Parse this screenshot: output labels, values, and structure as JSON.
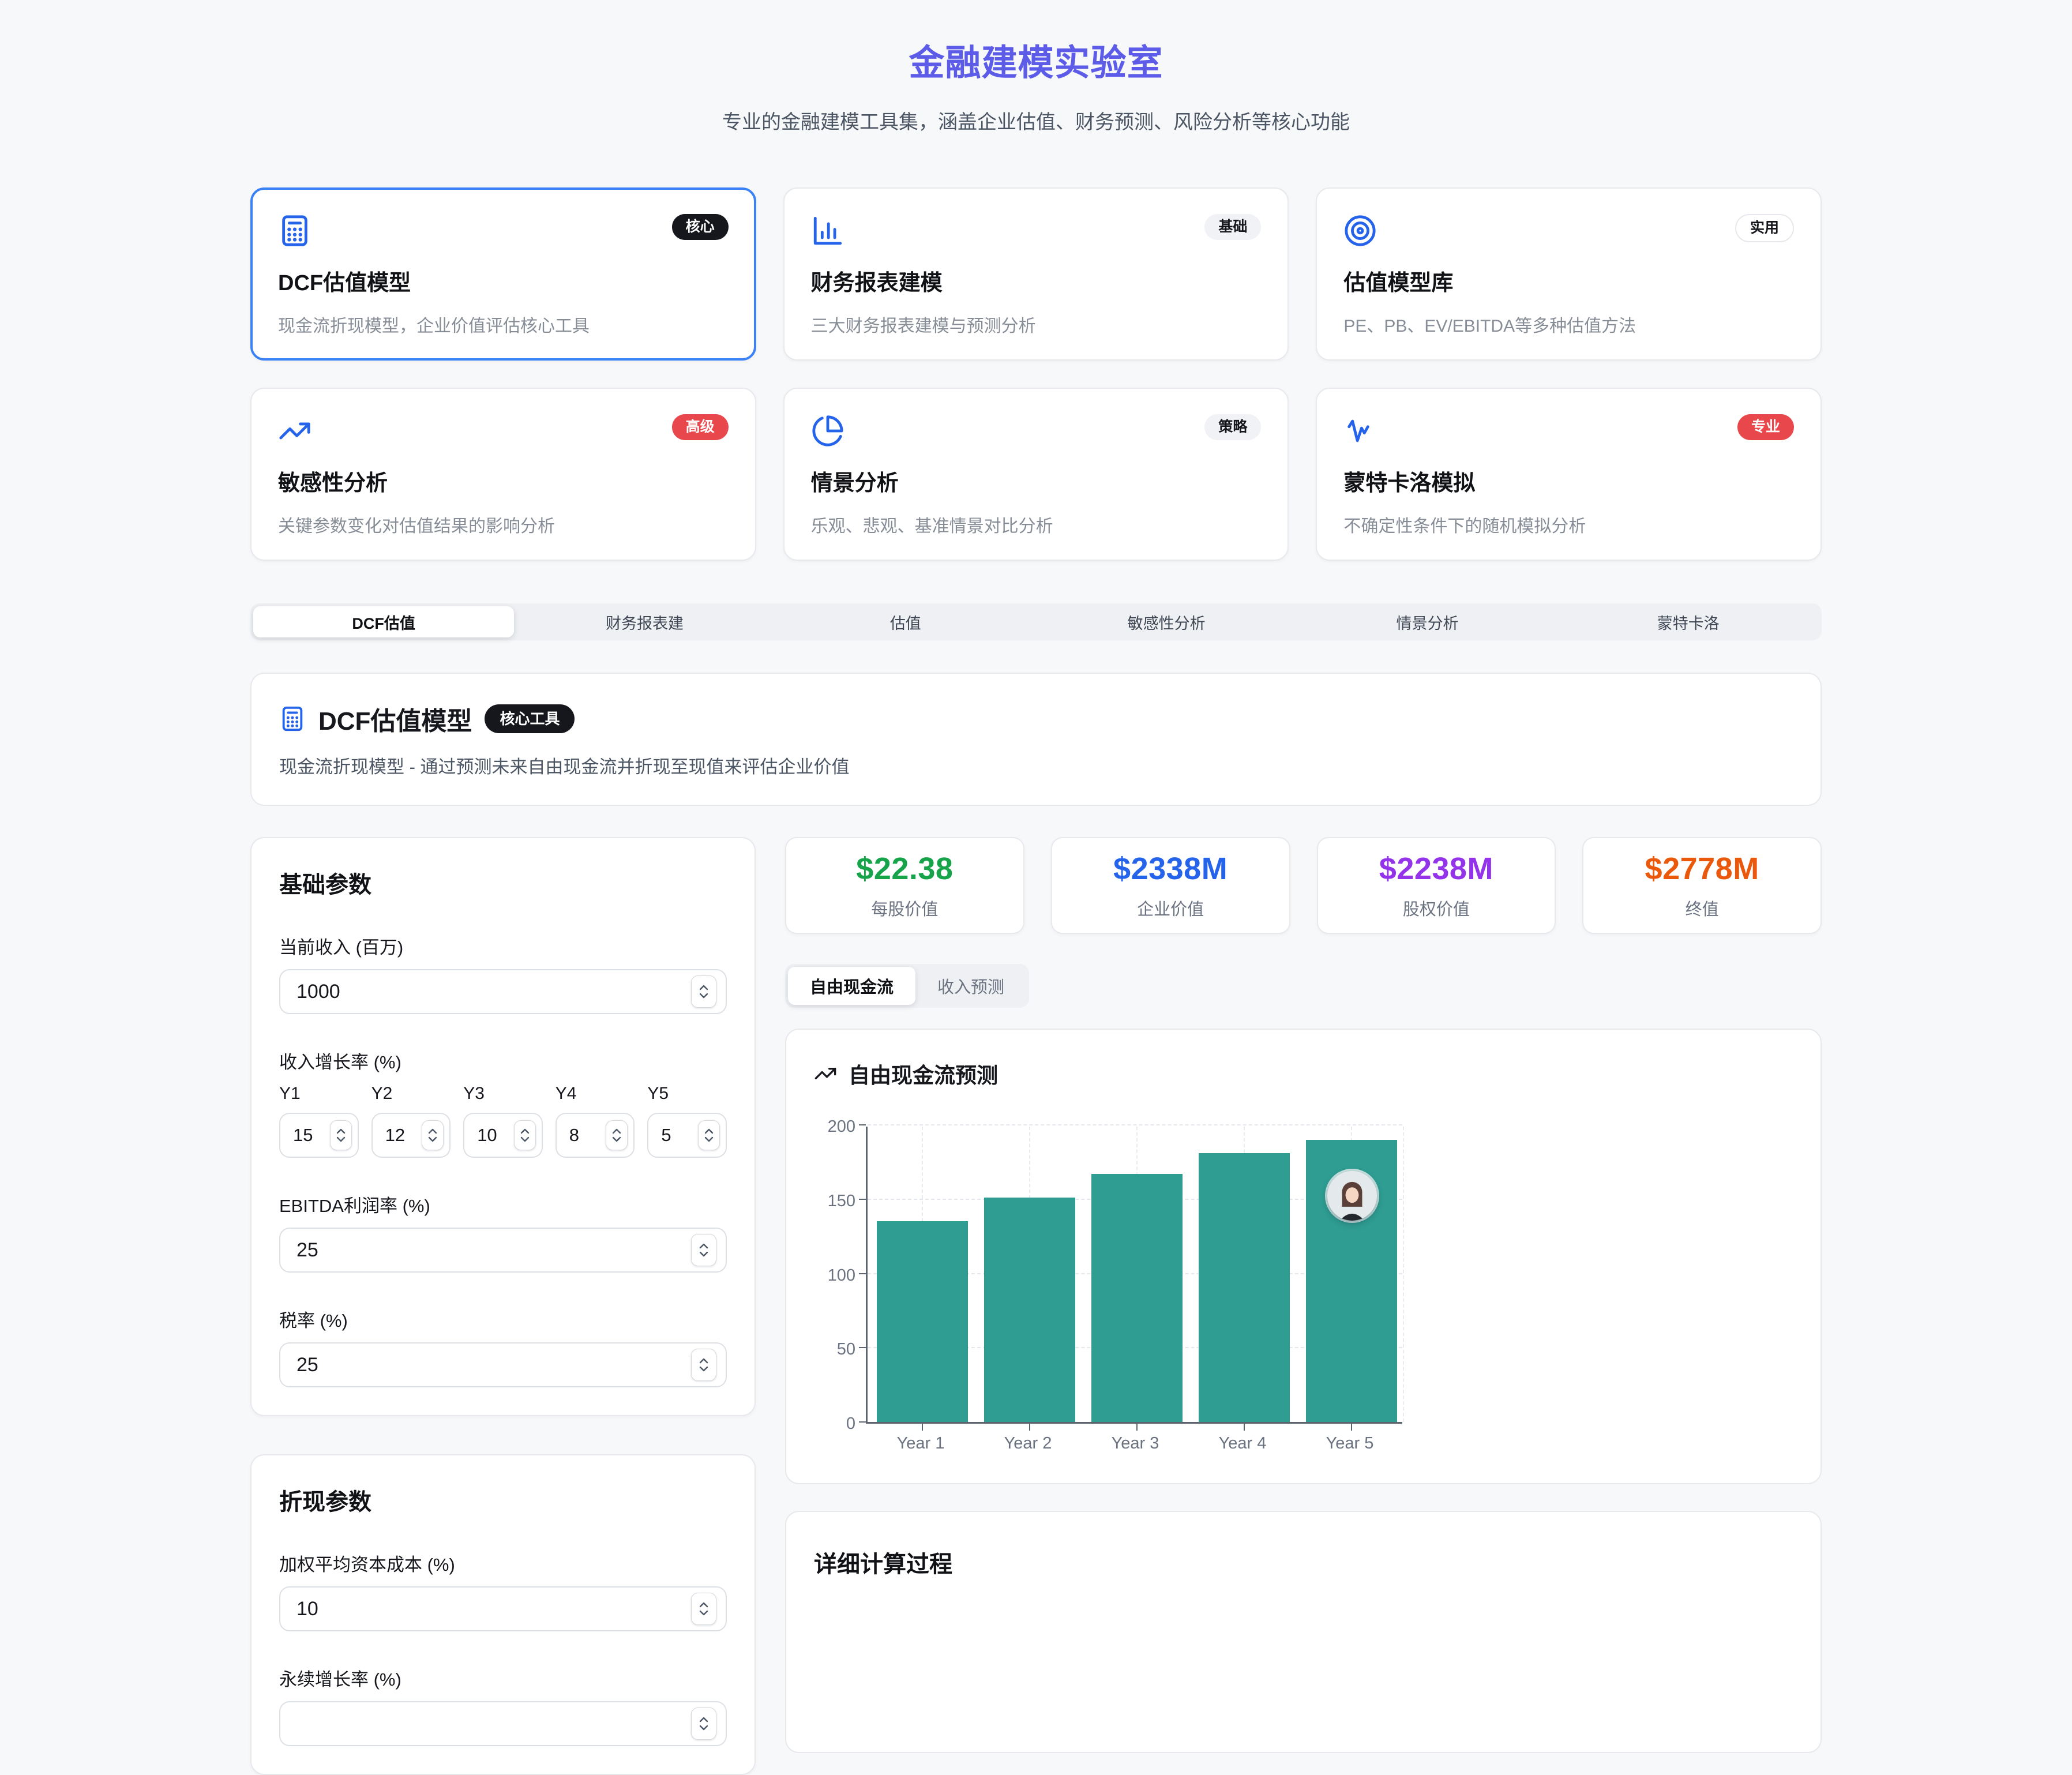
{
  "header": {
    "title": "金融建模实验室",
    "subtitle": "专业的金融建模工具集，涵盖企业估值、财务预测、风险分析等核心功能"
  },
  "tool_cards": [
    {
      "title": "DCF估值模型",
      "desc": "现金流折现模型，企业价值评估核心工具",
      "badge": "核心",
      "icon": "calculator-icon",
      "selected": true
    },
    {
      "title": "财务报表建模",
      "desc": "三大财务报表建模与预测分析",
      "badge": "基础",
      "icon": "bar-chart-icon",
      "selected": false
    },
    {
      "title": "估值模型库",
      "desc": "PE、PB、EV/EBITDA等多种估值方法",
      "badge": "实用",
      "icon": "target-icon",
      "selected": false
    },
    {
      "title": "敏感性分析",
      "desc": "关键参数变化对估值结果的影响分析",
      "badge": "高级",
      "icon": "trending-up-icon",
      "selected": false
    },
    {
      "title": "情景分析",
      "desc": "乐观、悲观、基准情景对比分析",
      "badge": "策略",
      "icon": "pie-chart-icon",
      "selected": false
    },
    {
      "title": "蒙特卡洛模拟",
      "desc": "不确定性条件下的随机模拟分析",
      "badge": "专业",
      "icon": "activity-icon",
      "selected": false
    }
  ],
  "tabs": [
    {
      "label": "DCF估值",
      "active": true
    },
    {
      "label": "财务报表建",
      "active": false
    },
    {
      "label": "估值",
      "active": false
    },
    {
      "label": "敏感性分析",
      "active": false
    },
    {
      "label": "情景分析",
      "active": false
    },
    {
      "label": "蒙特卡洛",
      "active": false
    }
  ],
  "section": {
    "title": "DCF估值模型",
    "badge": "核心工具",
    "desc": "现金流折现模型 - 通过预测未来自由现金流并折现至现值来评估企业价值"
  },
  "basic_params": {
    "title": "基础参数",
    "revenue_label": "当前收入 (百万)",
    "revenue_value": "1000",
    "growth_label": "收入增长率 (%)",
    "growth_years": [
      {
        "label": "Y1",
        "value": "15"
      },
      {
        "label": "Y2",
        "value": "12"
      },
      {
        "label": "Y3",
        "value": "10"
      },
      {
        "label": "Y4",
        "value": "8"
      },
      {
        "label": "Y5",
        "value": "5"
      }
    ],
    "ebitda_label": "EBITDA利润率 (%)",
    "ebitda_value": "25",
    "tax_label": "税率 (%)",
    "tax_value": "25"
  },
  "discount_params": {
    "title": "折现参数",
    "wacc_label": "加权平均资本成本 (%)",
    "wacc_value": "10",
    "terminal_label": "永续增长率 (%)",
    "terminal_value": ""
  },
  "metrics": [
    {
      "value": "$22.38",
      "label": "每股价值",
      "color": "#16a34a"
    },
    {
      "value": "$2338M",
      "label": "企业价值",
      "color": "#2563eb"
    },
    {
      "value": "$2238M",
      "label": "股权价值",
      "color": "#9333ea"
    },
    {
      "value": "$2778M",
      "label": "终值",
      "color": "#ea580c"
    }
  ],
  "chart_tabs": [
    {
      "label": "自由现金流",
      "active": true
    },
    {
      "label": "收入预测",
      "active": false
    }
  ],
  "chart_data": {
    "type": "bar",
    "title": "自由现金流预测",
    "categories": [
      "Year 1",
      "Year 2",
      "Year 3",
      "Year 4",
      "Year 5"
    ],
    "values": [
      135,
      151,
      167,
      181,
      190
    ],
    "ylim": [
      0,
      200
    ],
    "yticks": [
      0,
      50,
      100,
      150,
      200
    ],
    "bar_color": "#2f9d92",
    "grid": "dashed",
    "legend": "none"
  },
  "detail_section": {
    "title": "详细计算过程"
  }
}
